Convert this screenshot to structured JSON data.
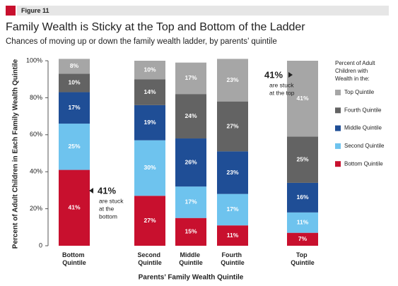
{
  "figure_label": "Figure 11",
  "chart_data": {
    "type": "stacked_bar",
    "title": "Family Wealth is Sticky at the Top and Bottom of the Ladder",
    "subtitle": "Chances of moving up or down the family wealth ladder, by parents’ quintile",
    "ylabel": "Percent of Adult Children in Each Family Wealth Quintile",
    "xlabel": "Parents’ Family Wealth Quintile",
    "categories": [
      "Bottom Quintile",
      "Second Quintile",
      "Middle Quintile",
      "Fourth Quintile",
      "Top Quintile"
    ],
    "series": [
      {
        "name": "Bottom Quintile",
        "color": "#c8102e",
        "values": [
          41,
          27,
          15,
          11,
          7
        ],
        "value_labels": [
          "41%",
          "27%",
          "15%",
          "11%",
          "7%"
        ]
      },
      {
        "name": "Second Quintile",
        "color": "#6ec3ee",
        "values": [
          25,
          30,
          17,
          17,
          11
        ],
        "value_labels": [
          "25%",
          "30%",
          "17%",
          "17%",
          "11%"
        ]
      },
      {
        "name": "Middle Quintile",
        "color": "#1f4e96",
        "values": [
          17,
          19,
          26,
          23,
          16
        ],
        "value_labels": [
          "17%",
          "19%",
          "26%",
          "23%",
          "16%"
        ]
      },
      {
        "name": "Fourth Quintile",
        "color": "#636363",
        "values": [
          10,
          14,
          24,
          27,
          25
        ],
        "value_labels": [
          "10%",
          "14%",
          "24%",
          "27%",
          "25%"
        ]
      },
      {
        "name": "Top Quintile",
        "color": "#a6a6a6",
        "values": [
          8,
          10,
          17,
          23,
          41
        ],
        "value_labels": [
          "8%",
          "10%",
          "17%",
          "23%",
          "41%"
        ]
      }
    ],
    "ylim": [
      0,
      100
    ],
    "yticks": [
      0,
      {
        "value": 20,
        "label": "20%"
      },
      {
        "value": 40,
        "label": "40%"
      },
      {
        "value": 60,
        "label": "60%"
      },
      {
        "value": 80,
        "label": "80%"
      },
      {
        "value": 100,
        "label": "100%"
      }
    ],
    "legend_title": [
      "Percent of Adult",
      "Children with",
      "Wealth in the:"
    ],
    "annotations": [
      {
        "value_label": "41%",
        "lines": [
          "are stuck",
          "at the",
          "bottom"
        ]
      },
      {
        "value_label": "41%",
        "lines": [
          "are stuck",
          "at the top"
        ]
      }
    ]
  }
}
